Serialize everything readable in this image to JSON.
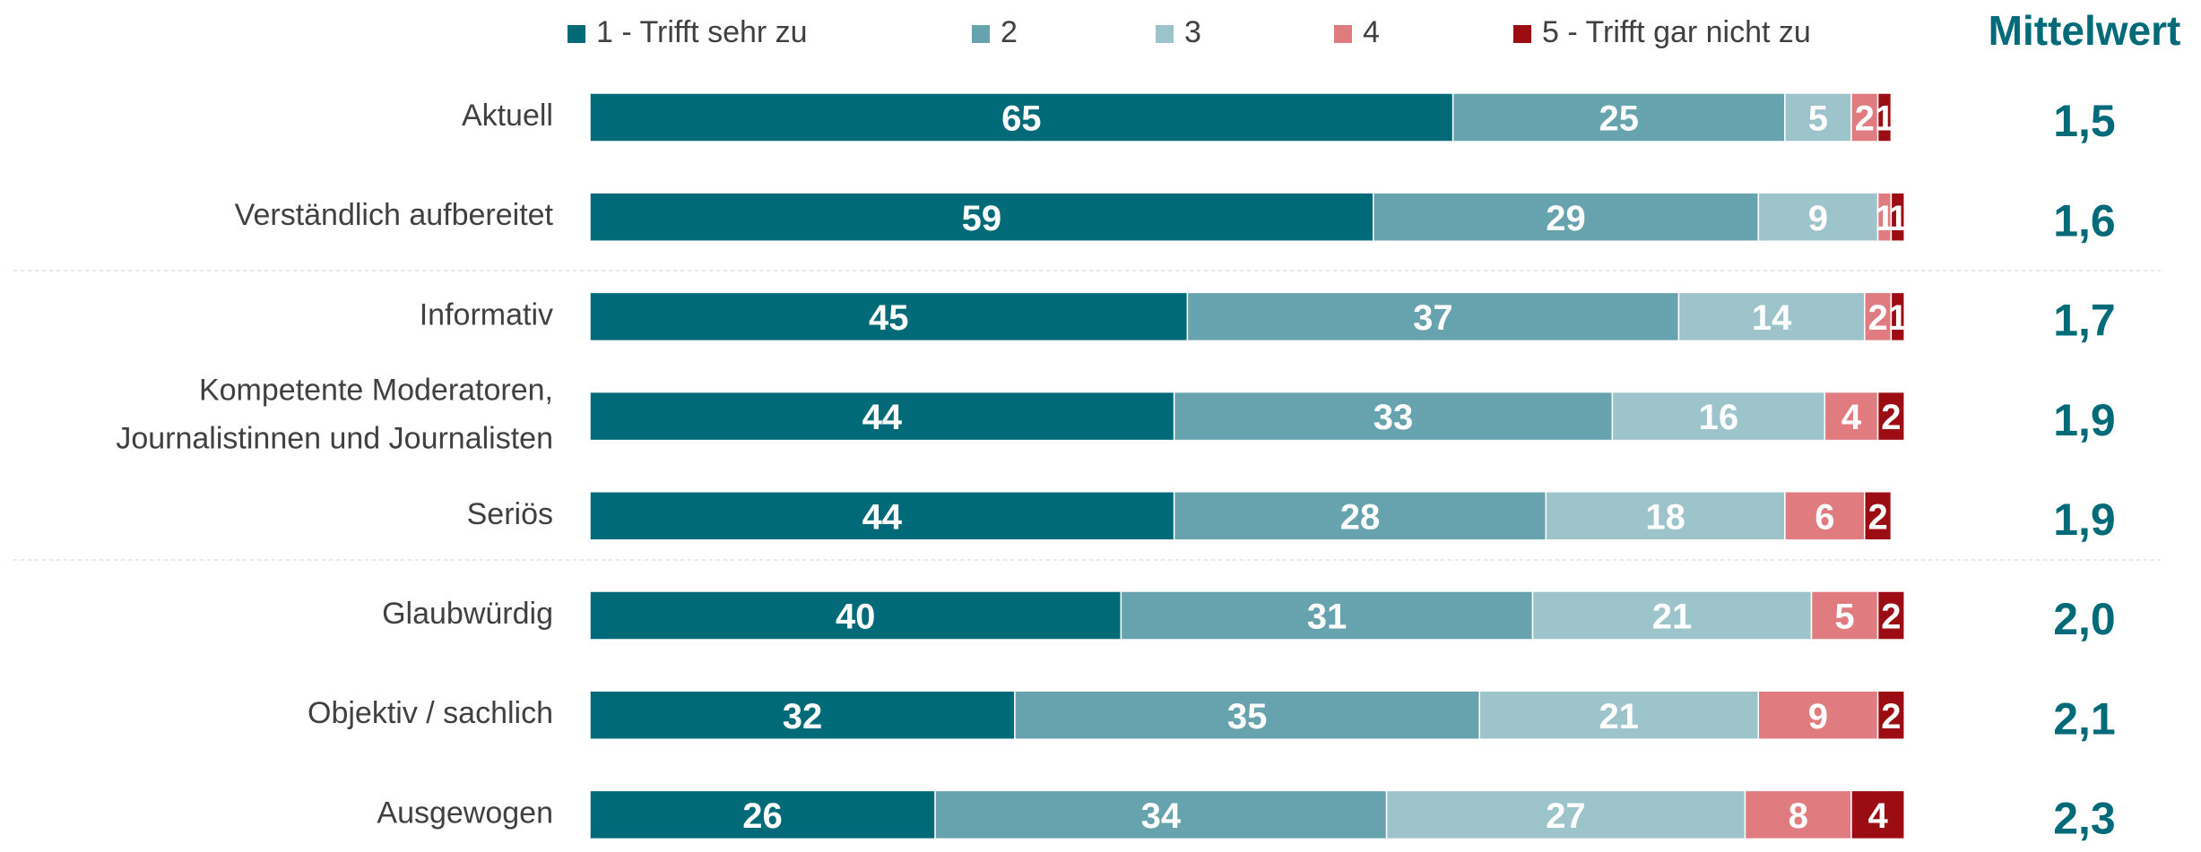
{
  "chart_data": {
    "type": "bar",
    "orientation": "horizontal",
    "stacked": true,
    "categories": [
      "Aktuell",
      "Verständlich aufbereitet",
      "Informativ",
      [
        "Kompetente Moderatoren,",
        "Journalistinnen und Journalisten"
      ],
      "Seriös",
      "Glaubwürdig",
      "Objektiv / sachlich",
      "Ausgewogen"
    ],
    "series": [
      {
        "name": "1 - Trifft sehr zu",
        "color": "#006a78",
        "values": [
          65,
          59,
          45,
          44,
          44,
          40,
          32,
          26
        ]
      },
      {
        "name": "2",
        "color": "#67a3ae",
        "values": [
          25,
          29,
          37,
          33,
          28,
          31,
          35,
          34
        ]
      },
      {
        "name": "3",
        "color": "#9dc4ca",
        "values": [
          5,
          9,
          14,
          16,
          18,
          21,
          21,
          27
        ]
      },
      {
        "name": "4",
        "color": "#e07b7f",
        "values": [
          2,
          1,
          2,
          4,
          6,
          5,
          9,
          8
        ]
      },
      {
        "name": "5 - Trifft gar nicht zu",
        "color": "#9b0c13",
        "values": [
          1,
          1,
          1,
          2,
          2,
          2,
          2,
          4
        ]
      }
    ],
    "xlim": [
      0,
      100
    ],
    "mean_title": "Mittelwert",
    "means": [
      1.5,
      1.6,
      1.7,
      1.9,
      1.9,
      2.0,
      2.1,
      2.3
    ],
    "mean_labels": [
      "1,5",
      "1,6",
      "1,7",
      "1,9",
      "1,9",
      "2,0",
      "2,1",
      "2,3"
    ]
  }
}
